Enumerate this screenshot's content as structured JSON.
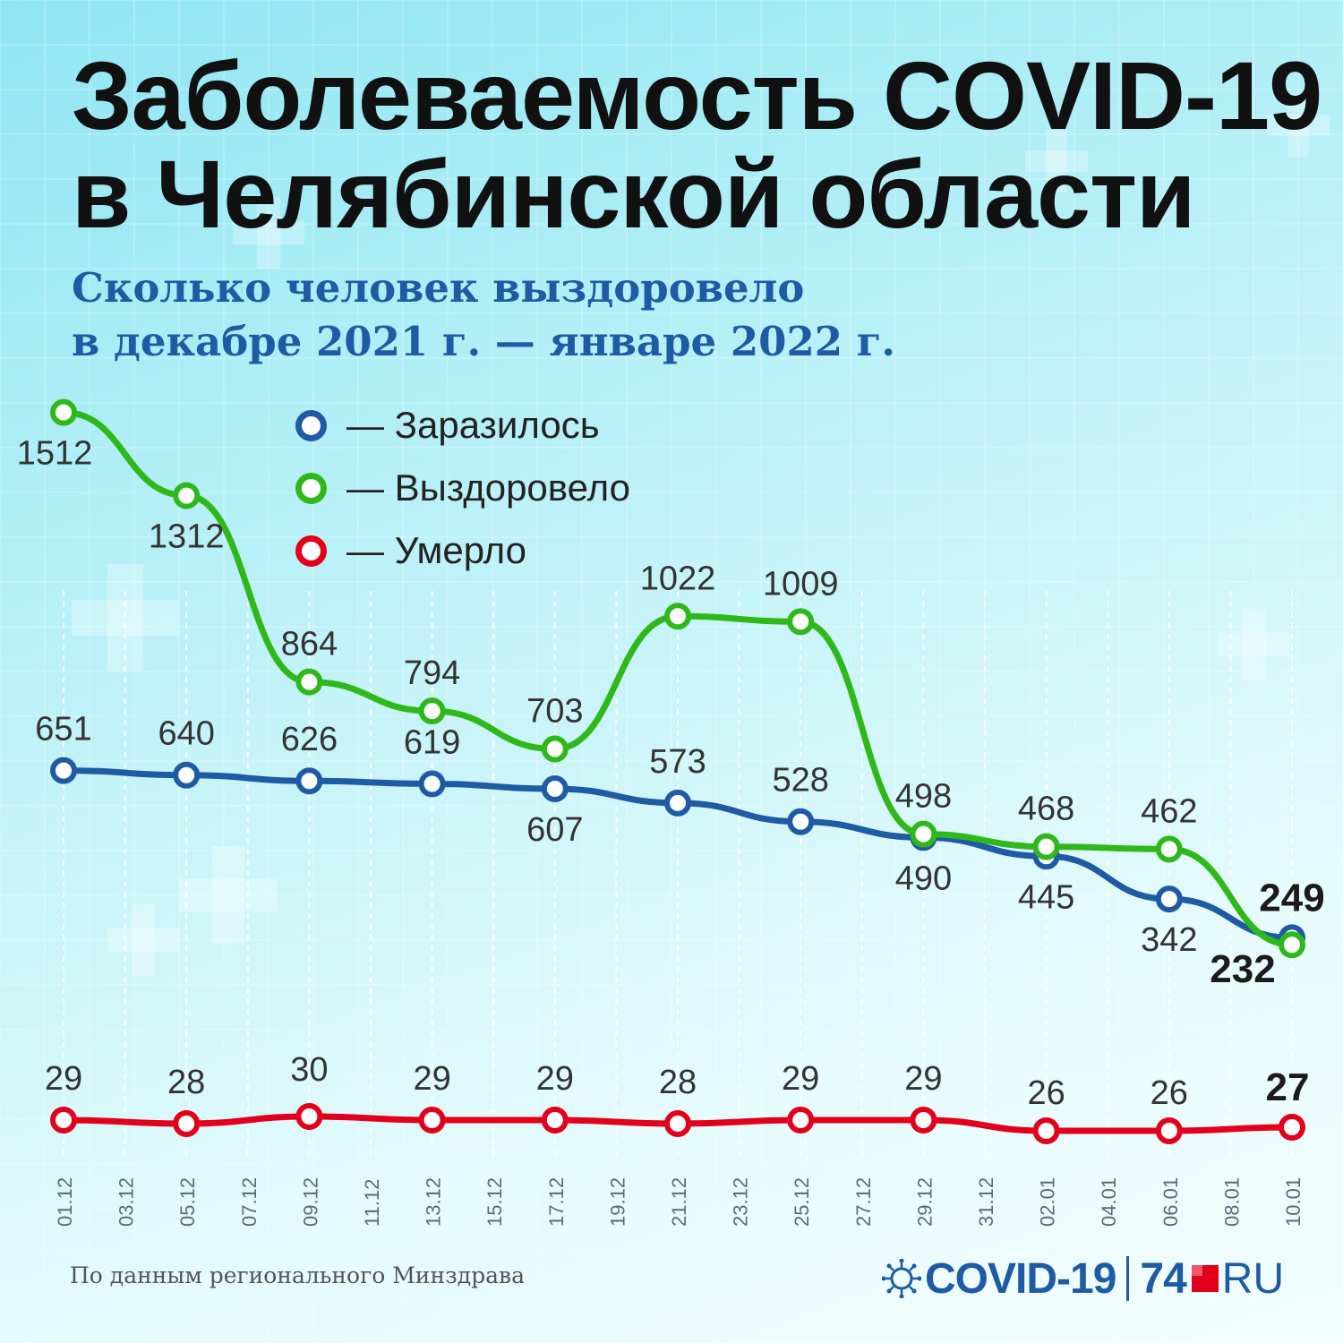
{
  "title": {
    "line1": "Заболеваемость COVID-19",
    "line2": "в Челябинской области"
  },
  "subtitle": {
    "line1": "Сколько человек выздоровело",
    "line2": "в декабре 2021 г. — январе 2022 г."
  },
  "legend": [
    {
      "label": "— Заразилось",
      "color": "#1e5ba4"
    },
    {
      "label": "— Выздоровело",
      "color": "#2fb819"
    },
    {
      "label": "— Умерло",
      "color": "#e2001a"
    }
  ],
  "source": "По данным регионального Минздрава",
  "logo": {
    "covid": "COVID-19",
    "num": "74",
    "ru": "RU"
  },
  "chart_data": {
    "type": "line",
    "title": "Сколько человек выздоровело в декабре 2021 г. — январе 2022 г.",
    "x_tick_labels": [
      "01.12",
      "03.12",
      "05.12",
      "07.12",
      "09.12",
      "11.12",
      "13.12",
      "15.12",
      "17.12",
      "19.12",
      "21.12",
      "23.12",
      "25.12",
      "27.12",
      "29.12",
      "31.12",
      "02.01",
      "04.01",
      "06.01",
      "08.01",
      "10.01"
    ],
    "categories": [
      "01.12",
      "05.12",
      "09.12",
      "13.12",
      "17.12",
      "21.12",
      "25.12",
      "29.12",
      "02.01",
      "06.01",
      "10.01"
    ],
    "series": [
      {
        "name": "Заразилось",
        "color": "#1e5ba4",
        "values": [
          651,
          640,
          626,
          619,
          607,
          573,
          528,
          490,
          445,
          342,
          249
        ]
      },
      {
        "name": "Выздоровело",
        "color": "#2fb819",
        "values": [
          1512,
          1312,
          864,
          794,
          703,
          1022,
          1009,
          498,
          468,
          462,
          232
        ]
      },
      {
        "name": "Умерло",
        "color": "#e2001a",
        "values": [
          29,
          28,
          30,
          29,
          29,
          28,
          29,
          29,
          26,
          26,
          27
        ]
      }
    ],
    "grid": true,
    "legend_position": "top"
  }
}
